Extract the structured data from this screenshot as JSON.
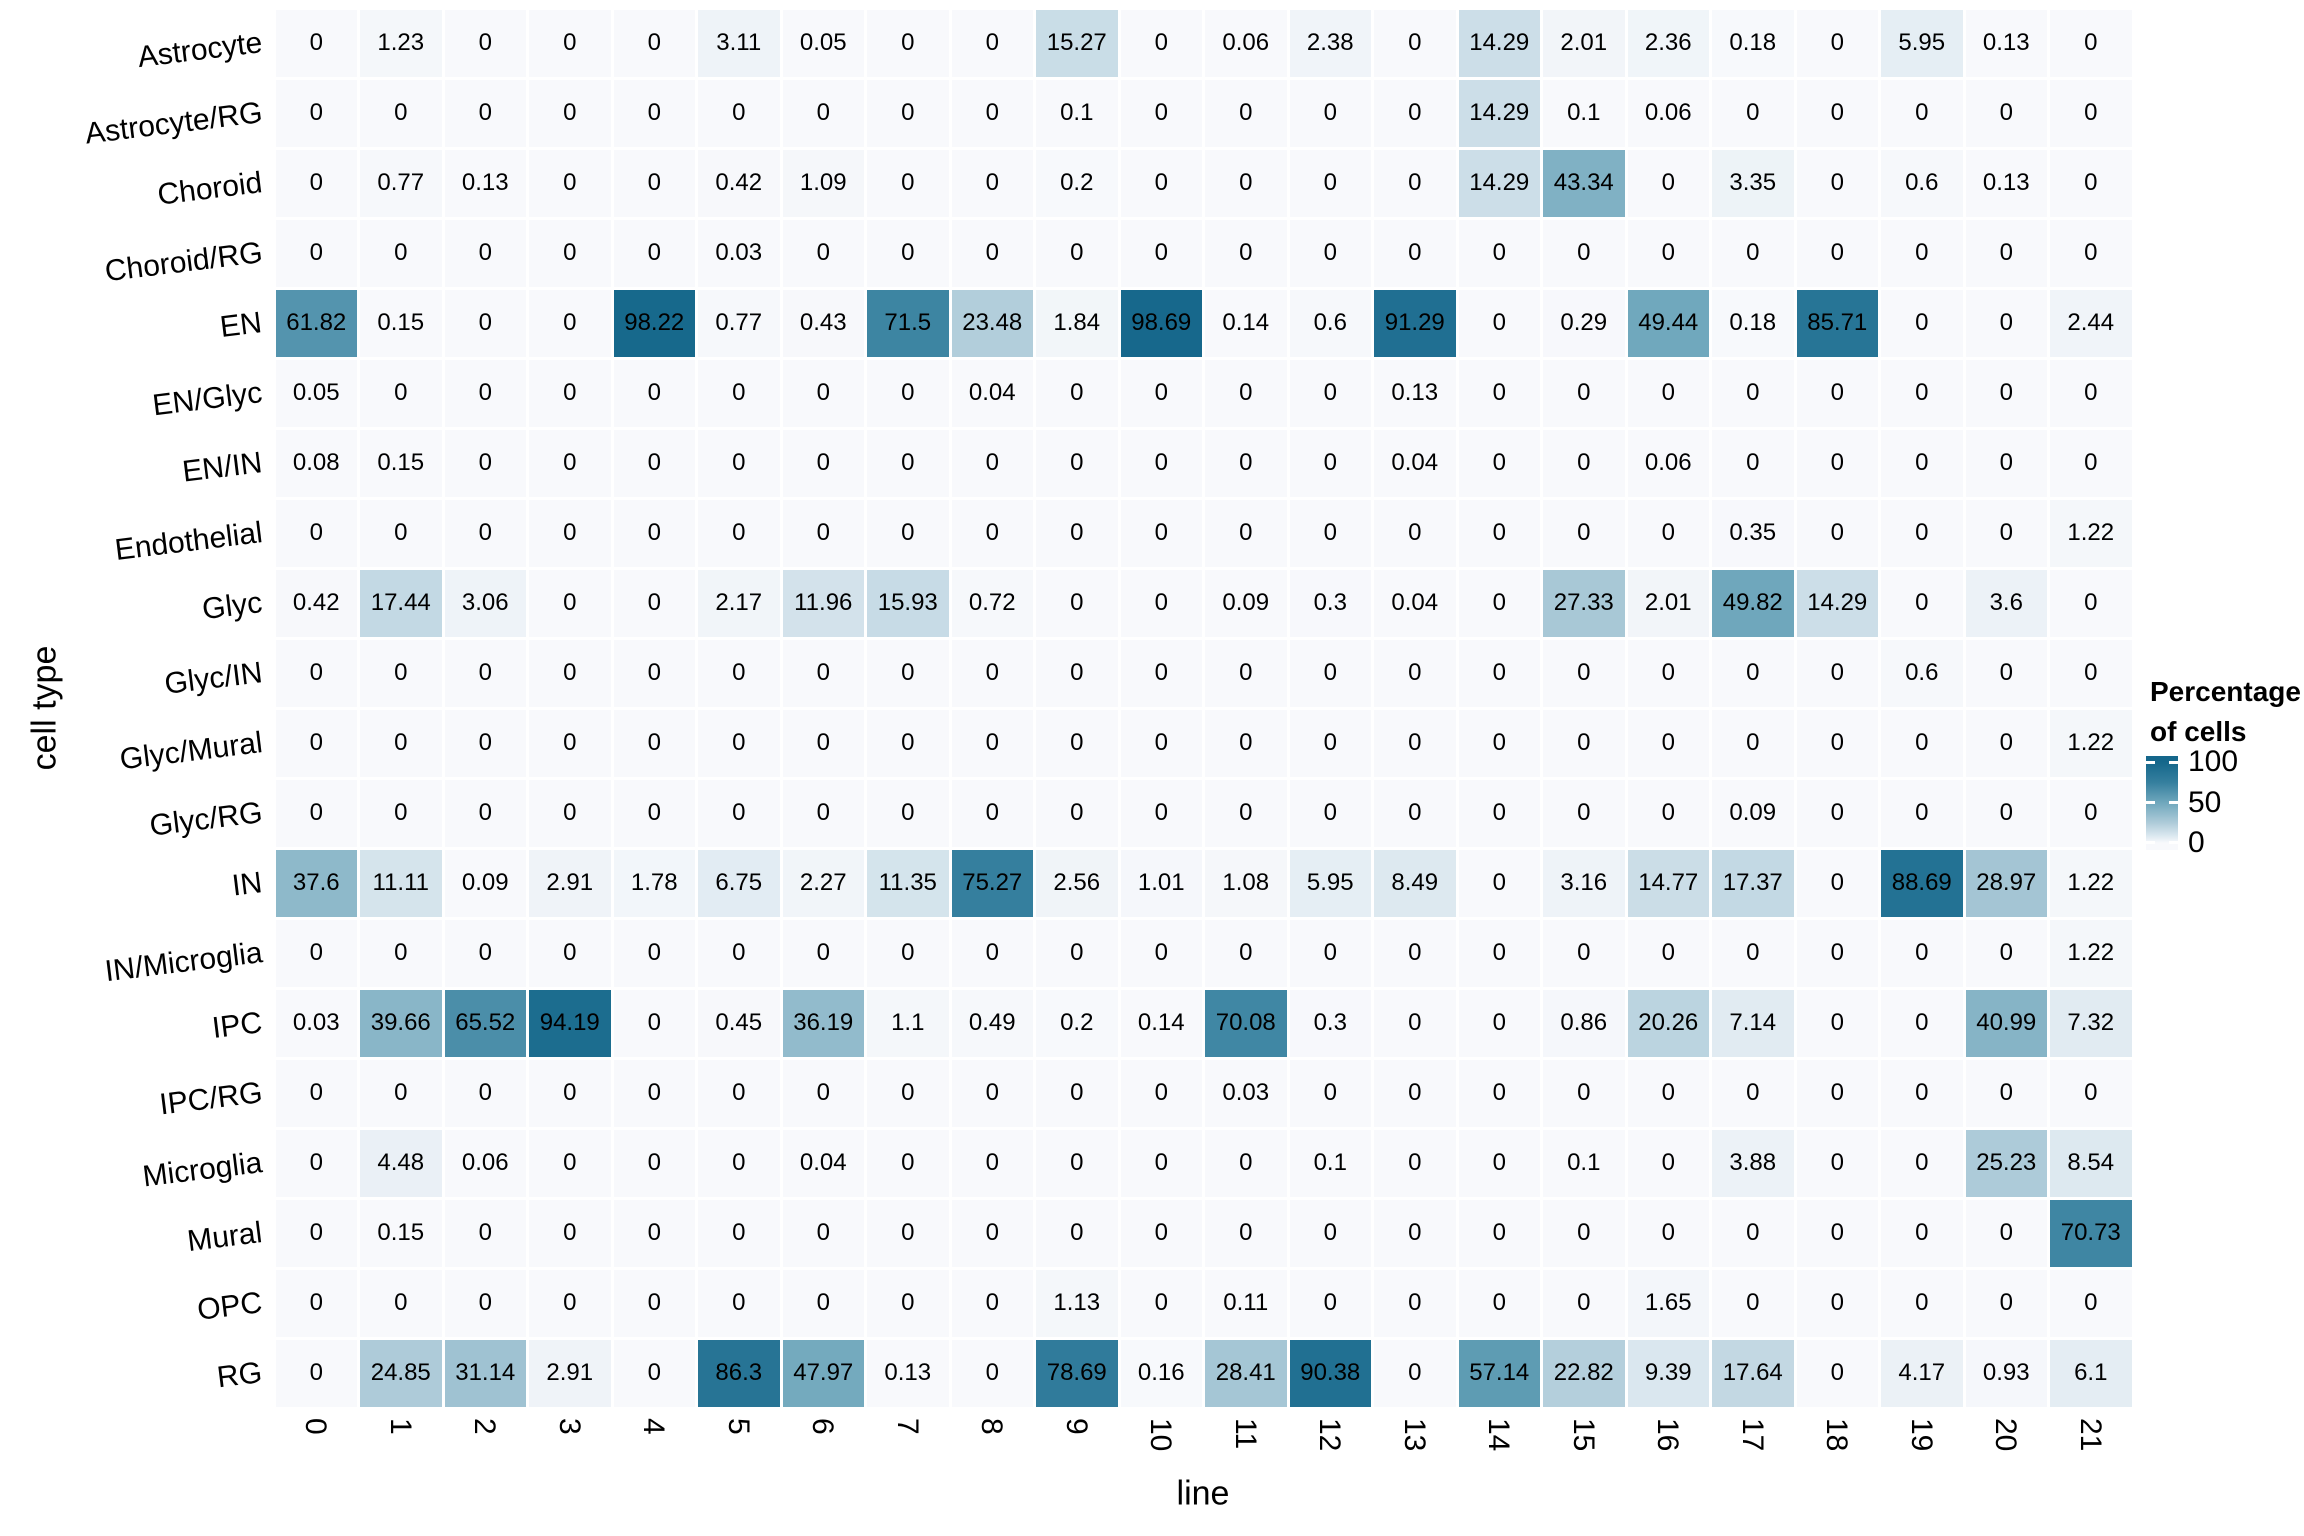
{
  "chart_data": {
    "type": "heatmap",
    "title": "",
    "xlabel": "line",
    "ylabel": "cell type",
    "x_categories": [
      "0",
      "1",
      "2",
      "3",
      "4",
      "5",
      "6",
      "7",
      "8",
      "9",
      "10",
      "11",
      "12",
      "13",
      "14",
      "15",
      "16",
      "17",
      "18",
      "19",
      "20",
      "21"
    ],
    "y_categories": [
      "Astrocyte",
      "Astrocyte/RG",
      "Choroid",
      "Choroid/RG",
      "EN",
      "EN/Glyc",
      "EN/IN",
      "Endothelial",
      "Glyc",
      "Glyc/IN",
      "Glyc/Mural",
      "Glyc/RG",
      "IN",
      "IN/Microglia",
      "IPC",
      "IPC/RG",
      "Microglia",
      "Mural",
      "OPC",
      "RG"
    ],
    "values": [
      [
        0,
        1.23,
        0,
        0,
        0,
        3.11,
        0.05,
        0,
        0,
        15.27,
        0,
        0.06,
        2.38,
        0,
        14.29,
        2.01,
        2.36,
        0.18,
        0,
        5.95,
        0.13,
        0
      ],
      [
        0,
        0,
        0,
        0,
        0,
        0,
        0,
        0,
        0,
        0.1,
        0,
        0,
        0,
        0,
        14.29,
        0.1,
        0.06,
        0,
        0,
        0,
        0,
        0
      ],
      [
        0,
        0.77,
        0.13,
        0,
        0,
        0.42,
        1.09,
        0,
        0,
        0.2,
        0,
        0,
        0,
        0,
        14.29,
        43.34,
        0,
        3.35,
        0,
        0.6,
        0.13,
        0
      ],
      [
        0,
        0,
        0,
        0,
        0,
        0.03,
        0,
        0,
        0,
        0,
        0,
        0,
        0,
        0,
        0,
        0,
        0,
        0,
        0,
        0,
        0,
        0
      ],
      [
        61.82,
        0.15,
        0,
        0,
        98.22,
        0.77,
        0.43,
        71.5,
        23.48,
        1.84,
        98.69,
        0.14,
        0.6,
        91.29,
        0,
        0.29,
        49.44,
        0.18,
        85.71,
        0,
        0,
        2.44
      ],
      [
        0.05,
        0,
        0,
        0,
        0,
        0,
        0,
        0,
        0.04,
        0,
        0,
        0,
        0,
        0.13,
        0,
        0,
        0,
        0,
        0,
        0,
        0,
        0
      ],
      [
        0.08,
        0.15,
        0,
        0,
        0,
        0,
        0,
        0,
        0,
        0,
        0,
        0,
        0,
        0.04,
        0,
        0,
        0.06,
        0,
        0,
        0,
        0,
        0
      ],
      [
        0,
        0,
        0,
        0,
        0,
        0,
        0,
        0,
        0,
        0,
        0,
        0,
        0,
        0,
        0,
        0,
        0,
        0.35,
        0,
        0,
        0,
        1.22
      ],
      [
        0.42,
        17.44,
        3.06,
        0,
        0,
        2.17,
        11.96,
        15.93,
        0.72,
        0,
        0,
        0.09,
        0.3,
        0.04,
        0,
        27.33,
        2.01,
        49.82,
        14.29,
        0,
        3.6,
        0
      ],
      [
        0,
        0,
        0,
        0,
        0,
        0,
        0,
        0,
        0,
        0,
        0,
        0,
        0,
        0,
        0,
        0,
        0,
        0,
        0,
        0.6,
        0,
        0
      ],
      [
        0,
        0,
        0,
        0,
        0,
        0,
        0,
        0,
        0,
        0,
        0,
        0,
        0,
        0,
        0,
        0,
        0,
        0,
        0,
        0,
        0,
        1.22
      ],
      [
        0,
        0,
        0,
        0,
        0,
        0,
        0,
        0,
        0,
        0,
        0,
        0,
        0,
        0,
        0,
        0,
        0,
        0.09,
        0,
        0,
        0,
        0
      ],
      [
        37.6,
        11.11,
        0.09,
        2.91,
        1.78,
        6.75,
        2.27,
        11.35,
        75.27,
        2.56,
        1.01,
        1.08,
        5.95,
        8.49,
        0,
        3.16,
        14.77,
        17.37,
        0,
        88.69,
        28.97,
        1.22
      ],
      [
        0,
        0,
        0,
        0,
        0,
        0,
        0,
        0,
        0,
        0,
        0,
        0,
        0,
        0,
        0,
        0,
        0,
        0,
        0,
        0,
        0,
        1.22
      ],
      [
        0.03,
        39.66,
        65.52,
        94.19,
        0,
        0.45,
        36.19,
        1.1,
        0.49,
        0.2,
        0.14,
        70.08,
        0.3,
        0,
        0,
        0.86,
        20.26,
        7.14,
        0,
        0,
        40.99,
        7.32
      ],
      [
        0,
        0,
        0,
        0,
        0,
        0,
        0,
        0,
        0,
        0,
        0,
        0.03,
        0,
        0,
        0,
        0,
        0,
        0,
        0,
        0,
        0,
        0
      ],
      [
        0,
        4.48,
        0.06,
        0,
        0,
        0,
        0.04,
        0,
        0,
        0,
        0,
        0,
        0.1,
        0,
        0,
        0.1,
        0,
        3.88,
        0,
        0,
        25.23,
        8.54
      ],
      [
        0,
        0.15,
        0,
        0,
        0,
        0,
        0,
        0,
        0,
        0,
        0,
        0,
        0,
        0,
        0,
        0,
        0,
        0,
        0,
        0,
        0,
        70.73
      ],
      [
        0,
        0,
        0,
        0,
        0,
        0,
        0,
        0,
        0,
        1.13,
        0,
        0.11,
        0,
        0,
        0,
        0,
        1.65,
        0,
        0,
        0,
        0,
        0
      ],
      [
        0,
        24.85,
        31.14,
        2.91,
        0,
        86.3,
        47.97,
        0.13,
        0,
        78.69,
        0.16,
        28.41,
        90.38,
        0,
        57.14,
        22.82,
        9.39,
        17.64,
        0,
        4.17,
        0.93,
        6.1
      ]
    ],
    "legend": {
      "title_lines": [
        "Percentage",
        "of cells"
      ],
      "ticks": [
        {
          "label": "100",
          "value": 100
        },
        {
          "label": "50",
          "value": 50
        },
        {
          "label": "0",
          "value": 0
        }
      ],
      "min": 0,
      "max": 100,
      "position": "right"
    },
    "color_stops": [
      [
        0,
        "#f8f9fc"
      ],
      [
        10,
        "#d8e6ee"
      ],
      [
        25,
        "#aecbd9"
      ],
      [
        50,
        "#6fa7bc"
      ],
      [
        75,
        "#357f9e"
      ],
      [
        100,
        "#15678b"
      ]
    ],
    "grid": "white-gaps-between-tiles",
    "text_color": "#000000",
    "background_color": "#ffffff"
  }
}
